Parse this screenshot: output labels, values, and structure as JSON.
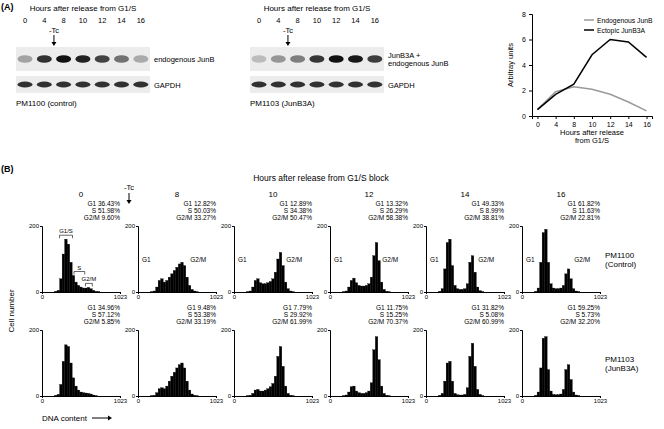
{
  "figure": {
    "panel_labels": [
      "(A)",
      "(B)"
    ]
  },
  "blots": {
    "header": "Hours after release from G1/S",
    "treatment": "-Tc",
    "lanes": [
      "0",
      "4",
      "8",
      "10",
      "12",
      "14",
      "16"
    ],
    "panels": [
      {
        "rows": [
          "endogenous JunB",
          "GAPDH"
        ],
        "cell_line": "PM1100 (control)"
      },
      {
        "rows": [
          "JunB3A + endogenous JunB",
          "GAPDH"
        ],
        "cell_line": "PM1103 (JunB3A)"
      }
    ]
  },
  "flow": {
    "header": "Hours after release from G1/S block",
    "treatment": "-Tc",
    "y_label": "Cell number",
    "x_label": "DNA content",
    "rows": [
      "PM1100 (Control)",
      "PM1103 (JunB3A)"
    ]
  },
  "chart_data": [
    {
      "type": "line",
      "x_label": "Hours after release from G1/S",
      "y_label": "Arbitray units",
      "categories": [
        "0",
        "4",
        "8",
        "10",
        "12",
        "14",
        "16"
      ],
      "series": [
        {
          "name": "Endogenous JunB",
          "color": "#9a9a9a",
          "values": [
            0.5,
            1.9,
            2.3,
            2.1,
            1.7,
            1.1,
            0.4
          ]
        },
        {
          "name": "Ectopic JunB3A",
          "color": "#000000",
          "values": [
            0.5,
            1.7,
            2.5,
            4.8,
            6.0,
            5.8,
            4.6
          ]
        }
      ],
      "ylim": [
        0,
        8
      ],
      "yticks": [
        0,
        2,
        4,
        6,
        8
      ],
      "legend": "top-right"
    },
    {
      "type": "histogram",
      "title": "0",
      "bins": [
        0,
        33,
        66,
        99,
        132,
        165,
        198,
        231,
        264,
        297,
        330,
        363,
        396,
        429,
        462,
        495,
        528,
        561,
        594,
        627,
        660,
        693,
        726,
        759,
        792,
        825,
        858,
        891,
        924,
        957,
        990,
        1023
      ],
      "values": [
        0,
        0,
        0,
        0,
        0,
        2,
        5,
        40,
        115,
        160,
        145,
        90,
        50,
        30,
        20,
        15,
        12,
        12,
        14,
        10,
        5,
        2,
        1,
        0,
        0,
        0,
        0,
        0,
        0,
        0,
        0
      ],
      "color": "#000000",
      "xlim": [
        0,
        1023
      ],
      "ylim": [
        0,
        200
      ],
      "xticks": [
        0,
        1023
      ],
      "yticks": [
        0,
        200
      ],
      "annotations": [
        "G1 36.43%",
        "S 51.98%",
        "G2/M 9.60%"
      ],
      "peak_labels": [
        {
          "text": "G1/S",
          "x": [
            230,
            400
          ]
        },
        {
          "text": "S",
          "x": [
            420,
            560
          ]
        },
        {
          "text": "G2/M",
          "x": [
            570,
            660
          ]
        }
      ]
    },
    {
      "type": "histogram",
      "title": "8",
      "bins": [
        0,
        33,
        66,
        99,
        132,
        165,
        198,
        231,
        264,
        297,
        330,
        363,
        396,
        429,
        462,
        495,
        528,
        561,
        594,
        627,
        660,
        693,
        726,
        759,
        792,
        825,
        858,
        891,
        924,
        957,
        990,
        1023
      ],
      "values": [
        0,
        0,
        0,
        0,
        0,
        1,
        3,
        15,
        35,
        40,
        30,
        35,
        45,
        55,
        65,
        75,
        85,
        90,
        80,
        45,
        20,
        8,
        3,
        1,
        0,
        0,
        0,
        0,
        0,
        0,
        0
      ],
      "color": "#000000",
      "xlim": [
        0,
        1023
      ],
      "ylim": [
        0,
        200
      ],
      "xticks": [
        0,
        1023
      ],
      "yticks": [
        0,
        200
      ],
      "annotations": [
        "G1 12.82%",
        "S 50.03%",
        "G2/M 33.27%"
      ],
      "peak_labels": [
        {
          "text": "G1",
          "x": 110
        },
        {
          "text": "G2/M",
          "x": 790
        }
      ]
    },
    {
      "type": "histogram",
      "title": "10",
      "bins": [
        0,
        33,
        66,
        99,
        132,
        165,
        198,
        231,
        264,
        297,
        330,
        363,
        396,
        429,
        462,
        495,
        528,
        561,
        594,
        627,
        660,
        693,
        726,
        759,
        792,
        825,
        858,
        891,
        924,
        957,
        990,
        1023
      ],
      "values": [
        0,
        0,
        0,
        0,
        0,
        1,
        3,
        15,
        35,
        40,
        28,
        25,
        25,
        28,
        32,
        40,
        60,
        100,
        120,
        80,
        30,
        10,
        3,
        1,
        0,
        0,
        0,
        0,
        0,
        0,
        0
      ],
      "color": "#000000",
      "xlim": [
        0,
        1023
      ],
      "ylim": [
        0,
        200
      ],
      "xticks": [
        0,
        1023
      ],
      "yticks": [
        0,
        200
      ],
      "annotations": [
        "G1 12.89%",
        "S 34.38%",
        "G2/M 50.47%"
      ],
      "peak_labels": [
        {
          "text": "G1",
          "x": 110
        },
        {
          "text": "G2/M",
          "x": 790
        }
      ]
    },
    {
      "type": "histogram",
      "title": "12",
      "bins": [
        0,
        33,
        66,
        99,
        132,
        165,
        198,
        231,
        264,
        297,
        330,
        363,
        396,
        429,
        462,
        495,
        528,
        561,
        594,
        627,
        660,
        693,
        726,
        759,
        792,
        825,
        858,
        891,
        924,
        957,
        990,
        1023
      ],
      "values": [
        0,
        0,
        0,
        0,
        0,
        1,
        3,
        15,
        35,
        42,
        28,
        20,
        18,
        18,
        20,
        25,
        45,
        110,
        150,
        95,
        30,
        8,
        2,
        1,
        0,
        0,
        0,
        0,
        0,
        0,
        0
      ],
      "color": "#000000",
      "xlim": [
        0,
        1023
      ],
      "ylim": [
        0,
        200
      ],
      "xticks": [
        0,
        1023
      ],
      "yticks": [
        0,
        200
      ],
      "annotations": [
        "G1 13.32%",
        "S 26.29%",
        "G2/M 58.38%"
      ],
      "peak_labels": [
        {
          "text": "G1",
          "x": 110
        },
        {
          "text": "G2/M",
          "x": 790
        }
      ]
    },
    {
      "type": "histogram",
      "title": "14",
      "bins": [
        0,
        33,
        66,
        99,
        132,
        165,
        198,
        231,
        264,
        297,
        330,
        363,
        396,
        429,
        462,
        495,
        528,
        561,
        594,
        627,
        660,
        693,
        726,
        759,
        792,
        825,
        858,
        891,
        924,
        957,
        990,
        1023
      ],
      "values": [
        0,
        0,
        0,
        0,
        0,
        2,
        10,
        70,
        150,
        160,
        80,
        20,
        10,
        8,
        8,
        10,
        25,
        90,
        110,
        60,
        15,
        4,
        1,
        0,
        0,
        0,
        0,
        0,
        0,
        0,
        0
      ],
      "color": "#000000",
      "xlim": [
        0,
        1023
      ],
      "ylim": [
        0,
        200
      ],
      "xticks": [
        0,
        1023
      ],
      "yticks": [
        0,
        200
      ],
      "annotations": [
        "G1 49.33%",
        "S 8.99%",
        "G2/M 38.81%"
      ],
      "peak_labels": [
        {
          "text": "G1",
          "x": 110
        },
        {
          "text": "G2/M",
          "x": 790
        }
      ]
    },
    {
      "type": "histogram",
      "title": "16",
      "bins": [
        0,
        33,
        66,
        99,
        132,
        165,
        198,
        231,
        264,
        297,
        330,
        363,
        396,
        429,
        462,
        495,
        528,
        561,
        594,
        627,
        660,
        693,
        726,
        759,
        792,
        825,
        858,
        891,
        924,
        957,
        990,
        1023
      ],
      "values": [
        0,
        0,
        0,
        0,
        0,
        2,
        12,
        90,
        180,
        190,
        90,
        25,
        12,
        10,
        10,
        12,
        20,
        55,
        70,
        40,
        10,
        3,
        1,
        0,
        0,
        0,
        0,
        0,
        0,
        0,
        0
      ],
      "color": "#000000",
      "xlim": [
        0,
        1023
      ],
      "ylim": [
        0,
        200
      ],
      "xticks": [
        0,
        1023
      ],
      "yticks": [
        0,
        200
      ],
      "annotations": [
        "G1 61.82%",
        "S 11.63%",
        "G2/M 22.81%"
      ],
      "peak_labels": [
        {
          "text": "G1",
          "x": 110
        },
        {
          "text": "G2/M",
          "x": 790
        }
      ]
    },
    {
      "type": "histogram",
      "bins": [
        0,
        33,
        66,
        99,
        132,
        165,
        198,
        231,
        264,
        297,
        330,
        363,
        396,
        429,
        462,
        495,
        528,
        561,
        594,
        627,
        660,
        693,
        726,
        759,
        792,
        825,
        858,
        891,
        924,
        957,
        990,
        1023
      ],
      "values": [
        0,
        0,
        0,
        0,
        0,
        2,
        5,
        35,
        105,
        155,
        150,
        100,
        55,
        30,
        18,
        12,
        10,
        9,
        8,
        6,
        3,
        1,
        0,
        0,
        0,
        0,
        0,
        0,
        0,
        0,
        0
      ],
      "color": "#000000",
      "xlim": [
        0,
        1023
      ],
      "ylim": [
        0,
        200
      ],
      "xticks": [
        0,
        1023
      ],
      "yticks": [
        0,
        200
      ],
      "annotations": [
        "G1 34.96%",
        "S 57.12%",
        "G2/M 5.85%"
      ]
    },
    {
      "type": "histogram",
      "bins": [
        0,
        33,
        66,
        99,
        132,
        165,
        198,
        231,
        264,
        297,
        330,
        363,
        396,
        429,
        462,
        495,
        528,
        561,
        594,
        627,
        660,
        693,
        726,
        759,
        792,
        825,
        858,
        891,
        924,
        957,
        990,
        1023
      ],
      "values": [
        0,
        0,
        0,
        0,
        0,
        1,
        2,
        10,
        22,
        25,
        22,
        30,
        45,
        60,
        72,
        85,
        95,
        100,
        85,
        45,
        18,
        6,
        2,
        1,
        0,
        0,
        0,
        0,
        0,
        0,
        0
      ],
      "color": "#000000",
      "xlim": [
        0,
        1023
      ],
      "ylim": [
        0,
        200
      ],
      "xticks": [
        0,
        1023
      ],
      "yticks": [
        0,
        200
      ],
      "annotations": [
        "G1 9.48%",
        "S 53.38%",
        "G2/M 33.19%"
      ]
    },
    {
      "type": "histogram",
      "bins": [
        0,
        33,
        66,
        99,
        132,
        165,
        198,
        231,
        264,
        297,
        330,
        363,
        396,
        429,
        462,
        495,
        528,
        561,
        594,
        627,
        660,
        693,
        726,
        759,
        792,
        825,
        858,
        891,
        924,
        957,
        990,
        1023
      ],
      "values": [
        0,
        0,
        0,
        0,
        0,
        1,
        2,
        8,
        18,
        20,
        15,
        15,
        18,
        22,
        28,
        38,
        60,
        120,
        150,
        90,
        30,
        8,
        2,
        1,
        0,
        0,
        0,
        0,
        0,
        0,
        0
      ],
      "color": "#000000",
      "xlim": [
        0,
        1023
      ],
      "ylim": [
        0,
        200
      ],
      "xticks": [
        0,
        1023
      ],
      "yticks": [
        0,
        200
      ],
      "annotations": [
        "G1 7.79%",
        "S 29.92%",
        "G2/M 61.99%"
      ]
    },
    {
      "type": "histogram",
      "bins": [
        0,
        33,
        66,
        99,
        132,
        165,
        198,
        231,
        264,
        297,
        330,
        363,
        396,
        429,
        462,
        495,
        528,
        561,
        594,
        627,
        660,
        693,
        726,
        759,
        792,
        825,
        858,
        891,
        924,
        957,
        990,
        1023
      ],
      "values": [
        0,
        0,
        0,
        0,
        0,
        1,
        3,
        12,
        28,
        30,
        15,
        10,
        8,
        8,
        10,
        15,
        40,
        140,
        180,
        110,
        30,
        8,
        2,
        1,
        0,
        0,
        0,
        0,
        0,
        0,
        0
      ],
      "color": "#000000",
      "xlim": [
        0,
        1023
      ],
      "ylim": [
        0,
        200
      ],
      "xticks": [
        0,
        1023
      ],
      "yticks": [
        0,
        200
      ],
      "annotations": [
        "G1 11.75%",
        "S 15.25%",
        "G2/M 70.37%"
      ]
    },
    {
      "type": "histogram",
      "bins": [
        0,
        33,
        66,
        99,
        132,
        165,
        198,
        231,
        264,
        297,
        330,
        363,
        396,
        429,
        462,
        495,
        528,
        561,
        594,
        627,
        660,
        693,
        726,
        759,
        792,
        825,
        858,
        891,
        924,
        957,
        990,
        1023
      ],
      "values": [
        0,
        0,
        0,
        0,
        0,
        2,
        8,
        45,
        100,
        105,
        45,
        8,
        4,
        3,
        3,
        5,
        25,
        120,
        160,
        90,
        20,
        5,
        1,
        0,
        0,
        0,
        0,
        0,
        0,
        0,
        0
      ],
      "color": "#000000",
      "xlim": [
        0,
        1023
      ],
      "ylim": [
        0,
        200
      ],
      "xticks": [
        0,
        1023
      ],
      "yticks": [
        0,
        200
      ],
      "annotations": [
        "G1 31.82%",
        "S 5.08%",
        "G2/M 60.99%"
      ]
    },
    {
      "type": "histogram",
      "bins": [
        0,
        33,
        66,
        99,
        132,
        165,
        198,
        231,
        264,
        297,
        330,
        363,
        396,
        429,
        462,
        495,
        528,
        561,
        594,
        627,
        660,
        693,
        726,
        759,
        792,
        825,
        858,
        891,
        924,
        957,
        990,
        1023
      ],
      "values": [
        0,
        0,
        0,
        0,
        0,
        2,
        12,
        85,
        175,
        180,
        80,
        15,
        5,
        4,
        4,
        6,
        20,
        80,
        95,
        50,
        12,
        3,
        1,
        0,
        0,
        0,
        0,
        0,
        0,
        0,
        0
      ],
      "color": "#000000",
      "xlim": [
        0,
        1023
      ],
      "ylim": [
        0,
        200
      ],
      "xticks": [
        0,
        1023
      ],
      "yticks": [
        0,
        200
      ],
      "annotations": [
        "G1 59.25%",
        "S 5.73%",
        "G2/M 32.20%"
      ]
    }
  ]
}
